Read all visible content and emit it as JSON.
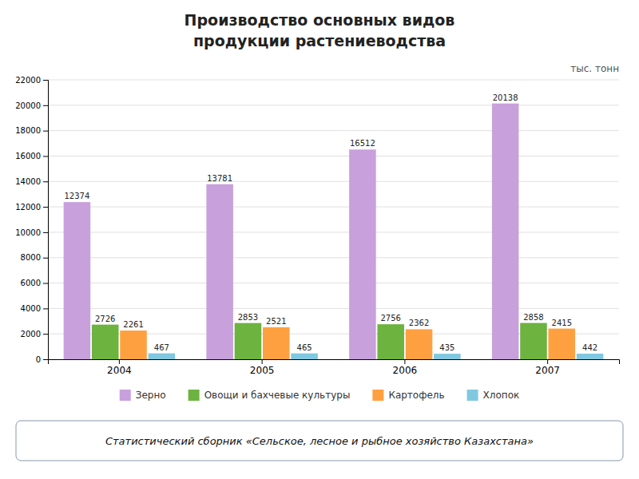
{
  "chart_data": {
    "type": "bar",
    "title": [
      "Производство основных видов",
      "продукции растениеводства"
    ],
    "ylabel": "тыс. тонн",
    "categories": [
      "2004",
      "2005",
      "2006",
      "2007"
    ],
    "series": [
      {
        "name": "Зерно",
        "color": "#C8A0DC",
        "values": [
          12374,
          13781,
          16512,
          20138
        ]
      },
      {
        "name": "Овощи и бахчевые культуры",
        "color": "#6DB33F",
        "values": [
          2726,
          2853,
          2756,
          2858
        ]
      },
      {
        "name": "Картофель",
        "color": "#FFA040",
        "values": [
          2261,
          2521,
          2362,
          2415
        ]
      },
      {
        "name": "Хлопок",
        "color": "#80C8E0",
        "values": [
          467,
          465,
          435,
          442
        ]
      }
    ],
    "ylim": [
      0,
      22000
    ],
    "yticks": [
      0,
      2000,
      4000,
      6000,
      8000,
      10000,
      12000,
      14000,
      16000,
      18000,
      20000,
      22000
    ],
    "grid": true,
    "legend": "bottom",
    "data_labels": true,
    "annotations": [
      "Статистический сборник «Сельское, лесное и рыбное хозяйство Казахстана»"
    ]
  }
}
